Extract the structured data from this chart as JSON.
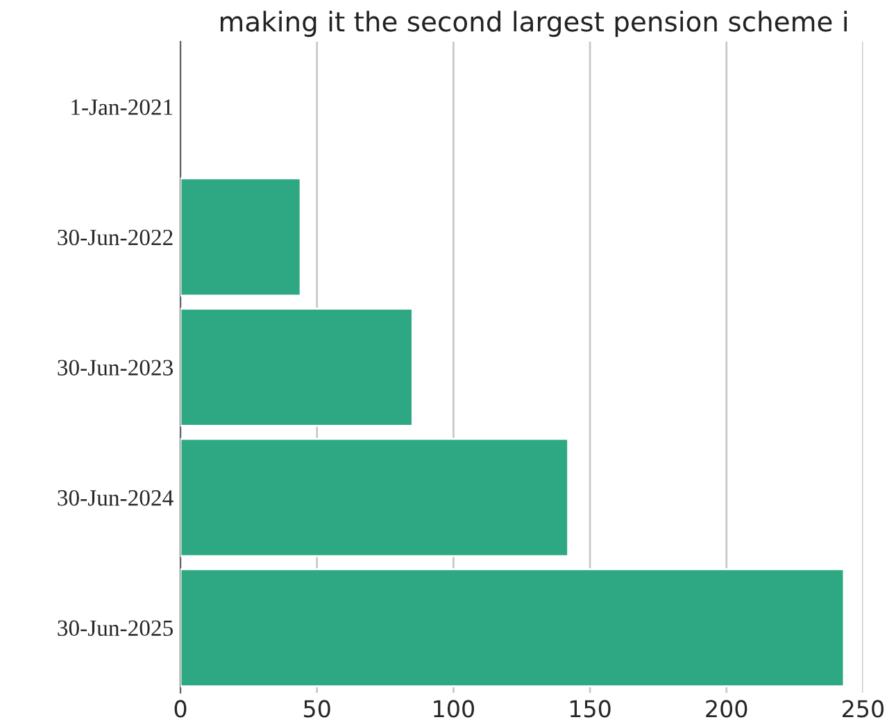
{
  "chart_data": {
    "type": "bar",
    "orientation": "horizontal",
    "title": "making it the second largest pension scheme i",
    "categories": [
      "1-Jan-2021",
      "30-Jun-2022",
      "30-Jun-2023",
      "30-Jun-2024",
      "30-Jun-2025"
    ],
    "values": [
      null,
      44,
      85,
      142,
      243
    ],
    "color": "#2ea882",
    "xlim": [
      0,
      250
    ],
    "xticks": [
      0,
      50,
      100,
      150,
      200,
      250
    ],
    "grid": "x"
  }
}
